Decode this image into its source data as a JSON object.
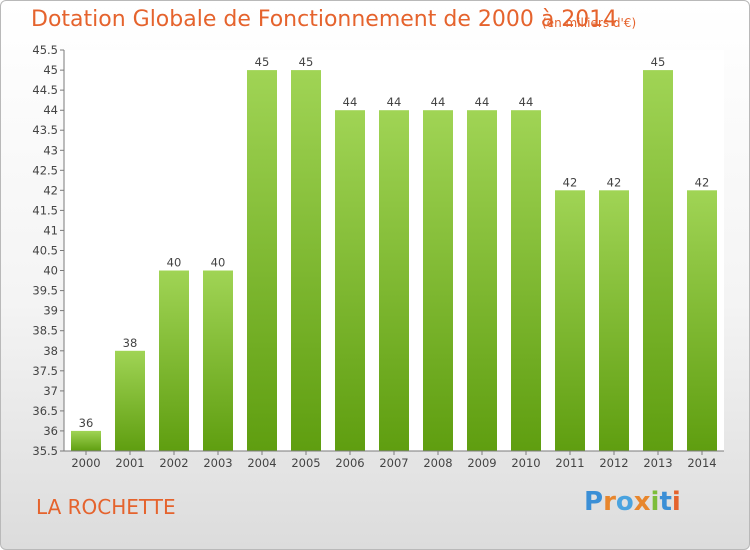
{
  "title": "Dotation Globale de Fonctionnement de 2000 à 2014",
  "subtitle": "(en milliers d'€)",
  "location": "LA ROCHETTE",
  "logo": {
    "text": "Proxiti",
    "letters": [
      "P",
      "r",
      "o",
      "x",
      "i",
      "t",
      "i"
    ]
  },
  "colors": {
    "title": "#e5632d",
    "bar_top": "#a0d455",
    "bar_bottom": "#5f9e10",
    "axis": "#7a7a7a",
    "grid_background": "#ffffff"
  },
  "chart_data": {
    "type": "bar",
    "categories": [
      "2000",
      "2001",
      "2002",
      "2003",
      "2004",
      "2005",
      "2006",
      "2007",
      "2008",
      "2009",
      "2010",
      "2011",
      "2012",
      "2013",
      "2014"
    ],
    "values": [
      36,
      38,
      40,
      40,
      45,
      45,
      44,
      44,
      44,
      44,
      44,
      42,
      42,
      45,
      42
    ],
    "data_labels": [
      "36",
      "38",
      "40",
      "40",
      "45",
      "45",
      "44",
      "44",
      "44",
      "44",
      "44",
      "42",
      "42",
      "45",
      "42"
    ],
    "yticks": [
      "35.5",
      "36",
      "36.5",
      "37",
      "37.5",
      "38",
      "38.5",
      "39",
      "39.5",
      "40",
      "40.5",
      "41",
      "41.5",
      "42",
      "42.5",
      "43",
      "43.5",
      "44",
      "44.5",
      "45",
      "45.5"
    ],
    "ylim": [
      35.5,
      45.5
    ],
    "title": "Dotation Globale de Fonctionnement de 2000 à 2014",
    "subtitle": "(en milliers d'€)",
    "grid": false,
    "legend": "none"
  }
}
